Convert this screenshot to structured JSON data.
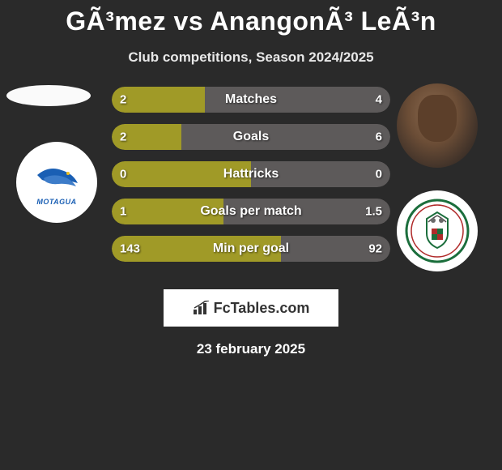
{
  "title": "GÃ³mez vs AnangonÃ³ LeÃ³n",
  "subtitle": "Club competitions, Season 2024/2025",
  "date": "23 february 2025",
  "footer": "FcTables.com",
  "colors": {
    "left_bar": "#a09a27",
    "right_bar": "#5d5a5a",
    "background": "#2a2a2a"
  },
  "rows": [
    {
      "label": "Matches",
      "left": "2",
      "right": "4",
      "left_pct": 33.3
    },
    {
      "label": "Goals",
      "left": "2",
      "right": "6",
      "left_pct": 25.0
    },
    {
      "label": "Hattricks",
      "left": "0",
      "right": "0",
      "left_pct": 50.0
    },
    {
      "label": "Goals per match",
      "left": "1",
      "right": "1.5",
      "left_pct": 40.0
    },
    {
      "label": "Min per goal",
      "left": "143",
      "right": "92",
      "left_pct": 60.8
    }
  ],
  "team_left": {
    "name": "Motagua",
    "crest_bg": "#ffffff",
    "crest_primary": "#1a5fb4",
    "text": "MOTAGUA"
  },
  "team_right": {
    "name": "Marathon",
    "crest_bg": "#ffffff",
    "crest_primary": "#1b6e3c",
    "crest_accent": "#b02a2a"
  }
}
